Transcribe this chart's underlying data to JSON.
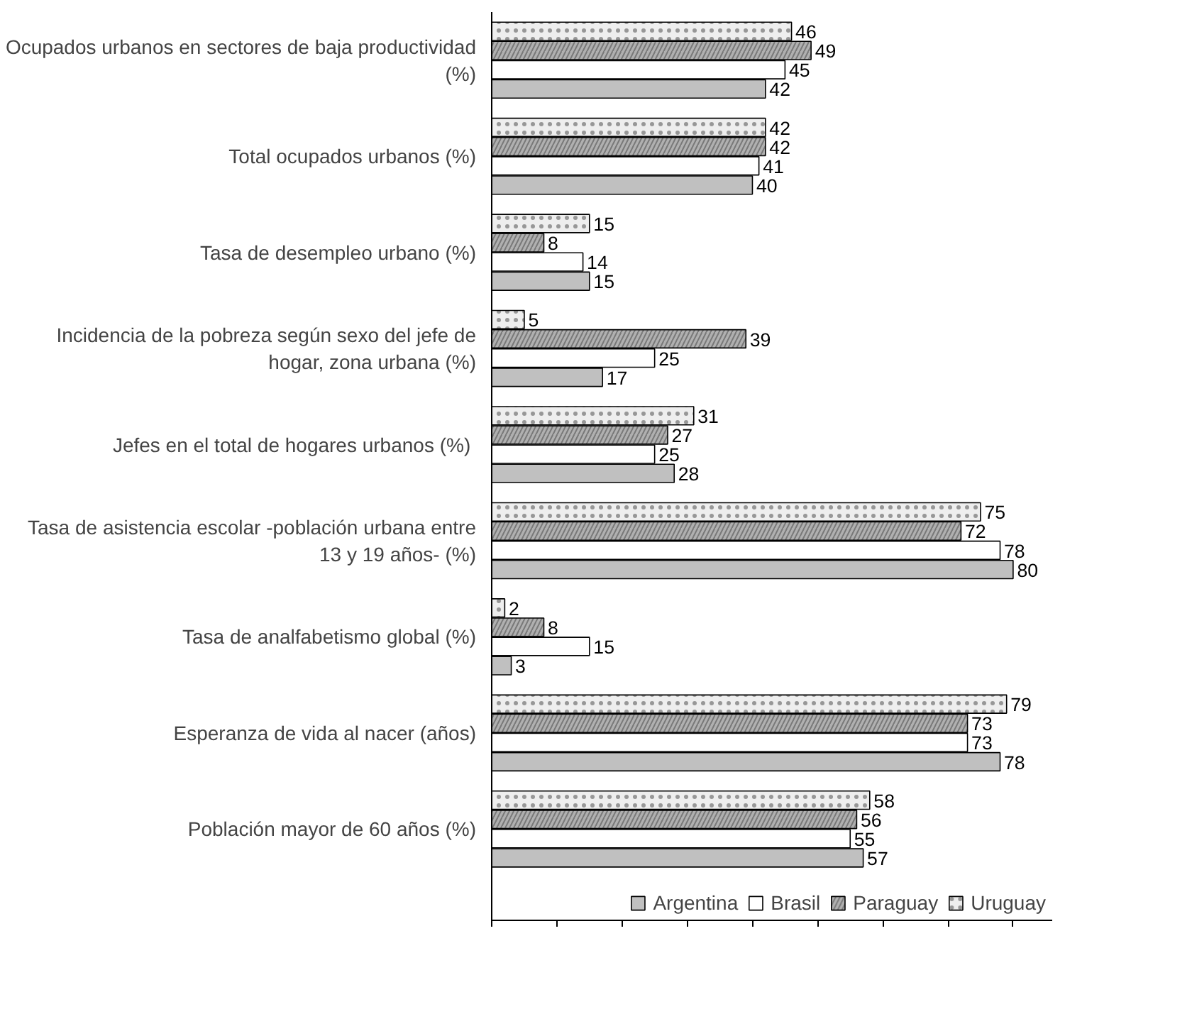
{
  "chart_data": {
    "type": "bar",
    "orientation": "horizontal",
    "categories": [
      "Ocupados urbanos en sectores de baja productividad (%)",
      "Total ocupados urbanos (%)",
      "Tasa de desempleo urbano (%)",
      "Incidencia de la pobreza según sexo del jefe de hogar, zona urbana (%)",
      "Jefes en el  total de hogares urbanos (%)",
      "Tasa de asistencia escolar -población urbana entre 13 y 19 años- (%)",
      "Tasa de analfabetismo global (%)",
      "Esperanza de vida al nacer (años)",
      "Población mayor de 60 años (%)"
    ],
    "series": [
      {
        "name": "Argentina",
        "color": "#c0c0c0",
        "values": [
          42,
          40,
          15,
          17,
          28,
          80,
          3,
          78,
          57
        ]
      },
      {
        "name": "Brasil",
        "color": "#ffffff",
        "values": [
          45,
          41,
          14,
          25,
          25,
          78,
          15,
          73,
          55
        ]
      },
      {
        "name": "Paraguay",
        "color": "#b0b0b0",
        "values": [
          49,
          42,
          8,
          39,
          27,
          72,
          8,
          73,
          56
        ]
      },
      {
        "name": "Uruguay",
        "color": "#eeeeee",
        "values": [
          46,
          42,
          15,
          5,
          31,
          75,
          2,
          79,
          58
        ]
      }
    ],
    "xlim": [
      0,
      86
    ],
    "xticks": [
      {
        "value": 0,
        "label": null
      },
      {
        "value": 10,
        "label": null
      },
      {
        "value": 20,
        "label": null
      },
      {
        "value": 30,
        "label": null
      },
      {
        "value": 40,
        "label": null
      },
      {
        "value": 50,
        "label": null
      },
      {
        "value": 60,
        "label": null
      },
      {
        "value": 70,
        "label": null
      },
      {
        "value": 80,
        "label": null
      }
    ],
    "tick_labels": "y",
    "data_labels": true,
    "grid": false,
    "legend": "bottom"
  }
}
